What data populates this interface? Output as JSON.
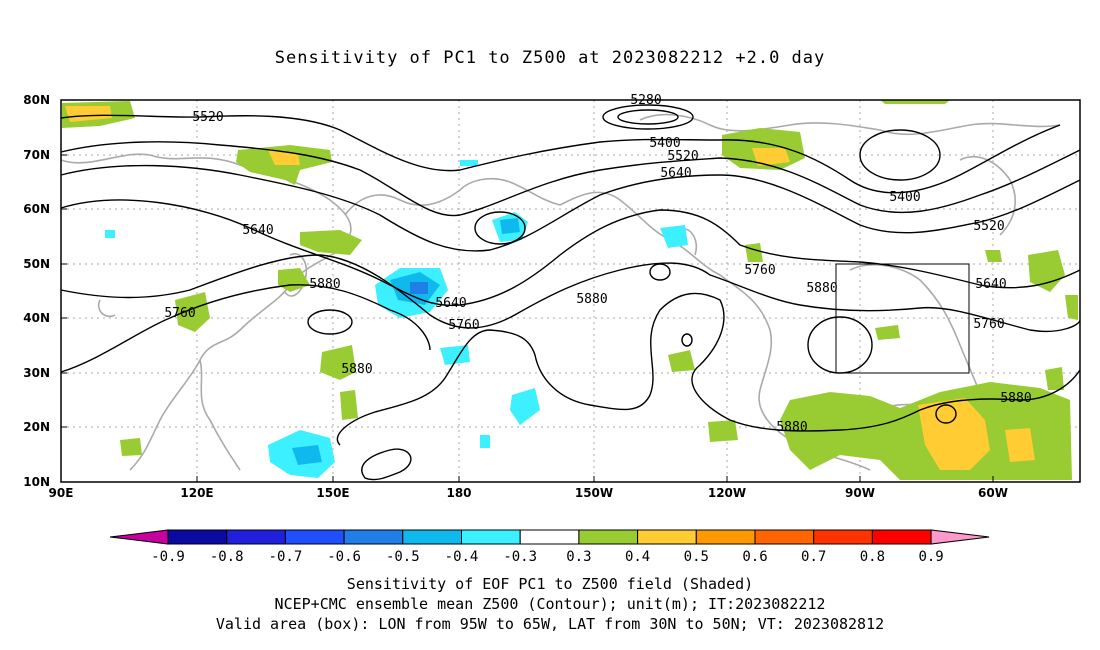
{
  "title": "Sensitivity of PC1 to Z500 at 2023082212 +2.0 day",
  "map": {
    "lat_ticks": [
      "80N",
      "70N",
      "60N",
      "50N",
      "40N",
      "30N",
      "20N",
      "10N"
    ],
    "lon_ticks": [
      "90E",
      "120E",
      "150E",
      "180",
      "150W",
      "120W",
      "90W",
      "60W"
    ],
    "contour_labels": [
      "5280",
      "5400",
      "5520",
      "5520",
      "5640",
      "5640",
      "5760",
      "5760",
      "5880",
      "5880",
      "5640",
      "5760",
      "5880",
      "5400",
      "5520",
      "5640",
      "5760",
      "5880",
      "5880"
    ],
    "valid_box": {
      "lon_min": -95,
      "lon_max": -65,
      "lat_min": 30,
      "lat_max": 50
    }
  },
  "colorbar": {
    "labels": [
      "-0.9",
      "-0.8",
      "-0.7",
      "-0.6",
      "-0.5",
      "-0.4",
      "-0.3",
      "0.3",
      "0.4",
      "0.5",
      "0.6",
      "0.7",
      "0.8",
      "0.9"
    ],
    "colors": [
      "#0a0aa0",
      "#1f1fdc",
      "#1f4fff",
      "#1f7fe6",
      "#0fb9ee",
      "#3cf0ff",
      "#ffffff",
      "#99cc33",
      "#ffcc33",
      "#ff9900",
      "#ff6600",
      "#ff3300",
      "#ff0000"
    ],
    "left_arrow_color": "#c800a0",
    "right_arrow_color": "#ff99cc"
  },
  "captions": [
    "Sensitivity of EOF PC1 to Z500 field (Shaded)",
    "NCEP+CMC ensemble mean Z500 (Contour); unit(m); IT:2023082212",
    "Valid area (box): LON from 95W to 65W, LAT from 30N to 50N; VT: 2023082812"
  ]
}
